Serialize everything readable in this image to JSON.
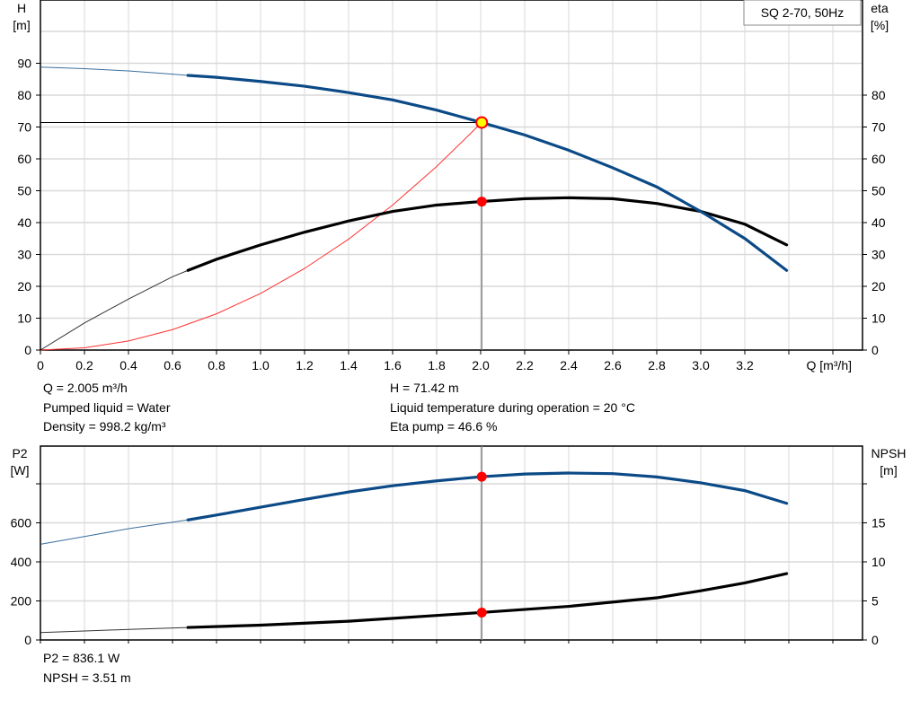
{
  "chart_data": [
    {
      "type": "line",
      "legend_box": "SQ 2-70, 50Hz",
      "ylabel_left": [
        "H",
        "[m]"
      ],
      "ylabel_right": [
        "eta",
        "[%]"
      ],
      "xlabel": "Q [m³/h]",
      "xlim": [
        0,
        3.73
      ],
      "ylim": [
        0,
        110
      ],
      "grid": true,
      "x_ticks": [
        "0",
        "0.2",
        "0.4",
        "0.6",
        "0.8",
        "1.0",
        "1.2",
        "1.4",
        "1.6",
        "1.8",
        "2.0",
        "2.2",
        "2.4",
        "2.6",
        "2.8",
        "3.0",
        "3.2"
      ],
      "y_ticks_left": [
        0,
        10,
        20,
        30,
        40,
        50,
        60,
        70,
        80,
        90
      ],
      "y_ticks_right": [
        0,
        10,
        20,
        30,
        40,
        50,
        60,
        70,
        80
      ],
      "series": [
        {
          "key": "H",
          "color": "#0b4a86",
          "thick_from": 0.67,
          "x": [
            0,
            0.2,
            0.4,
            0.6,
            0.67,
            0.8,
            1.0,
            1.2,
            1.4,
            1.6,
            1.8,
            2.0,
            2.2,
            2.4,
            2.6,
            2.8,
            3.0,
            3.2,
            3.39
          ],
          "y": [
            88.8,
            88.3,
            87.6,
            86.6,
            86.2,
            85.6,
            84.3,
            82.8,
            80.8,
            78.5,
            75.3,
            71.5,
            67.5,
            62.7,
            57.2,
            51.2,
            43.5,
            35,
            25
          ]
        },
        {
          "key": "eta",
          "color": "#000000",
          "thick_from": 0.67,
          "x": [
            0,
            0.2,
            0.4,
            0.6,
            0.67,
            0.8,
            1.0,
            1.2,
            1.4,
            1.6,
            1.8,
            2.0,
            2.2,
            2.4,
            2.6,
            2.8,
            3.0,
            3.2,
            3.39
          ],
          "y": [
            0,
            8.5,
            16,
            23,
            25,
            28.5,
            33,
            37,
            40.5,
            43.5,
            45.5,
            46.6,
            47.5,
            47.8,
            47.5,
            46,
            43.5,
            39.5,
            33
          ]
        },
        {
          "key": "system",
          "color": "#ff3030",
          "x": [
            0,
            0.2,
            0.4,
            0.6,
            0.8,
            1.0,
            1.2,
            1.4,
            1.6,
            1.8,
            2.005
          ],
          "y": [
            0,
            0.71,
            2.84,
            6.4,
            11.37,
            17.77,
            25.6,
            34.8,
            45.5,
            57.6,
            71.42
          ]
        }
      ],
      "duty_point": {
        "Q": 2.005,
        "H": 71.42,
        "eta": 46.6
      }
    },
    {
      "type": "line",
      "ylabel_left": [
        "P2",
        "[W]"
      ],
      "ylabel_right": [
        "NPSH",
        "[m]"
      ],
      "xlim": [
        0,
        3.73
      ],
      "ylim_left": [
        0,
        990
      ],
      "ylim_right": [
        0,
        24.75
      ],
      "grid": true,
      "y_ticks_left": [
        0,
        200,
        400,
        600
      ],
      "y_ticks_right": [
        0,
        5,
        10,
        15
      ],
      "series": [
        {
          "key": "P2",
          "color": "#0b4a86",
          "thick_from": 0.67,
          "x": [
            0,
            0.2,
            0.4,
            0.67,
            0.8,
            1.0,
            1.2,
            1.4,
            1.6,
            1.8,
            2.0,
            2.2,
            2.4,
            2.6,
            2.8,
            3.0,
            3.2,
            3.39
          ],
          "y": [
            490,
            530,
            570,
            615,
            640,
            680,
            720,
            758,
            790,
            815,
            836,
            850,
            855,
            852,
            835,
            805,
            765,
            700
          ]
        },
        {
          "key": "NPSH",
          "color": "#000000",
          "thick_from": 0.67,
          "axis": "right",
          "x": [
            0,
            0.2,
            0.4,
            0.67,
            1.0,
            1.4,
            2.0,
            2.4,
            2.8,
            3.0,
            3.2,
            3.39
          ],
          "y": [
            0.95,
            1.15,
            1.35,
            1.6,
            1.9,
            2.4,
            3.51,
            4.3,
            5.4,
            6.3,
            7.3,
            8.5
          ]
        }
      ],
      "duty_point": {
        "Q": 2.005,
        "P2": 836.1,
        "NPSH": 3.51
      }
    }
  ],
  "info": {
    "q": "Q = 2.005 m³/h",
    "h": "H = 71.42 m",
    "liquid": "Pumped liquid = Water",
    "temp": "Liquid temperature during operation = 20 °C",
    "density": "Density = 998.2 kg/m³",
    "eta": "Eta pump = 46.6 %",
    "p2": "P2 = 836.1 W",
    "npsh": "NPSH = 3.51 m"
  }
}
